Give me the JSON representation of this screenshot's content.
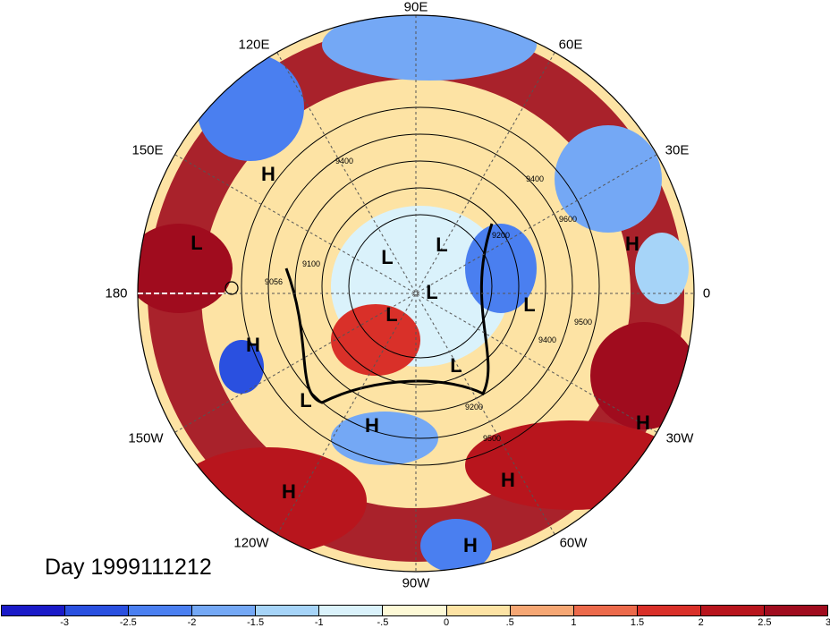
{
  "title": "Day 1999111212",
  "lon_labels": [
    {
      "text": "90E",
      "id": "90e"
    },
    {
      "text": "60E",
      "id": "60e"
    },
    {
      "text": "30E",
      "id": "30e"
    },
    {
      "text": "0",
      "id": "0"
    },
    {
      "text": "30W",
      "id": "30w"
    },
    {
      "text": "60W",
      "id": "60w"
    },
    {
      "text": "90W",
      "id": "90w"
    },
    {
      "text": "120W",
      "id": "120w"
    },
    {
      "text": "150W",
      "id": "150w"
    },
    {
      "text": "180",
      "id": "180"
    },
    {
      "text": "150E",
      "id": "150e"
    },
    {
      "text": "120E",
      "id": "120e"
    }
  ],
  "pressure_markers": [
    "H",
    "L",
    "H",
    "L",
    "H",
    "L",
    "L",
    "L",
    "L",
    "L",
    "H",
    "H",
    "H",
    "H",
    "H",
    "H"
  ],
  "contour_labels": [
    "9400",
    "9400",
    "9600",
    "9100",
    "9200",
    "9056",
    "9400",
    "9500",
    "9200",
    "9500"
  ],
  "colorbar": {
    "colors": [
      "#1a1ac8",
      "#2a50e0",
      "#4a7ff0",
      "#74a8f5",
      "#a6d4f8",
      "#daf2fb",
      "#fdf9d6",
      "#fde3a4",
      "#f6a774",
      "#ec6a4b",
      "#d93029",
      "#b8151d",
      "#a00c1e"
    ],
    "ticks": [
      "-3",
      "-2.5",
      "-2",
      "-1.5",
      "-1",
      "-.5",
      "0",
      ".5",
      "1",
      "1.5",
      "2",
      "2.5",
      "3"
    ]
  }
}
